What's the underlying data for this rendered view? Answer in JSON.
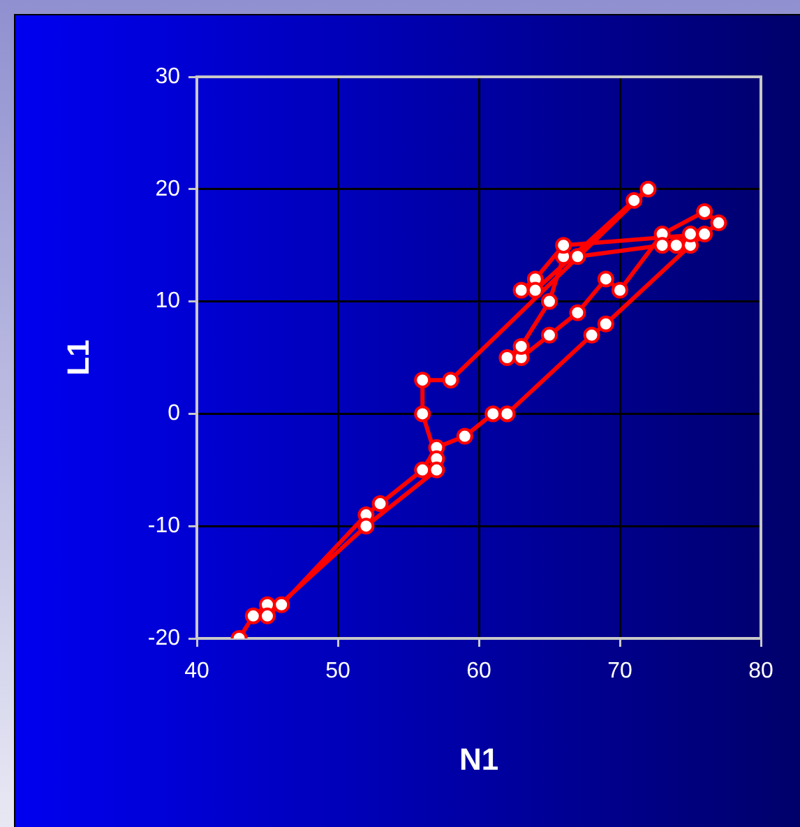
{
  "chart_data": {
    "type": "line",
    "xlabel": "N1",
    "ylabel": "L1",
    "xlim": [
      40,
      80
    ],
    "xticks": [
      40,
      50,
      60,
      70,
      80
    ],
    "ylim": [
      -20,
      30
    ],
    "yticks": [
      -20,
      -10,
      0,
      10,
      20,
      30
    ],
    "grid": true,
    "legend": false,
    "marker": "circle",
    "line_style": "solid",
    "series": [
      {
        "color": "#ff0000",
        "x": [
          43,
          44,
          45,
          46,
          52,
          53,
          56,
          57,
          59,
          61,
          62,
          68,
          69,
          75,
          77,
          76,
          73,
          70,
          69,
          67,
          65,
          63,
          62,
          63,
          65,
          66,
          67,
          73,
          74,
          75,
          76,
          66,
          64,
          63,
          64,
          71,
          72,
          58,
          56,
          56,
          57,
          57,
          52,
          45
        ],
        "values": [
          -20,
          -18,
          -17,
          -17,
          -9,
          -8,
          -5,
          -3,
          -2,
          0,
          0,
          7,
          8,
          15,
          17,
          18,
          16,
          11,
          12,
          9,
          7,
          5,
          5,
          6,
          10,
          14,
          14,
          15,
          15,
          16,
          16,
          15,
          12,
          11,
          11,
          19,
          20,
          3,
          3,
          0,
          -4,
          -5,
          -10,
          -18
        ]
      }
    ]
  }
}
